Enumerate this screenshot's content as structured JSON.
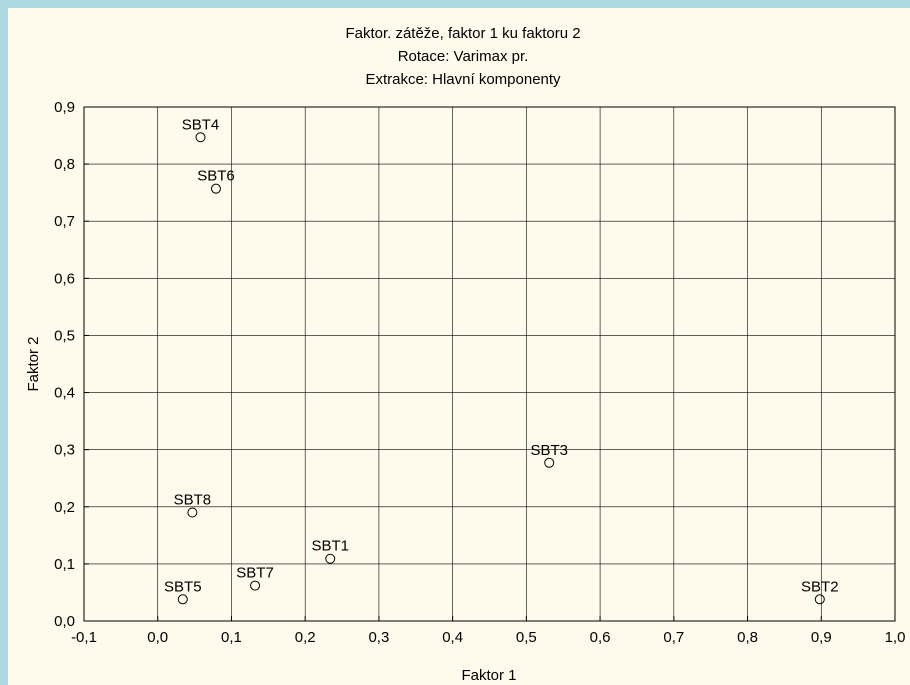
{
  "chart_data": {
    "type": "scatter",
    "title": [
      "Faktor. zátěže,  faktor 1 ku faktoru 2",
      "Rotace: Varimax pr.",
      "Extrakce: Hlavní komponenty"
    ],
    "xlabel": "Faktor 1",
    "ylabel": "Faktor 2",
    "xlim": [
      -0.1,
      1.0
    ],
    "ylim": [
      0.0,
      0.9
    ],
    "x_ticks": [
      "-0,1",
      "0,0",
      "0,1",
      "0,2",
      "0,3",
      "0,4",
      "0,5",
      "0,6",
      "0,7",
      "0,8",
      "0,9",
      "1,0"
    ],
    "y_ticks": [
      "0,0",
      "0,1",
      "0,2",
      "0,3",
      "0,4",
      "0,5",
      "0,6",
      "0,7",
      "0,8",
      "0,9"
    ],
    "grid": true,
    "points": [
      {
        "label": "SBT1",
        "x": 0.234,
        "y": 0.109
      },
      {
        "label": "SBT2",
        "x": 0.898,
        "y": 0.038
      },
      {
        "label": "SBT3",
        "x": 0.531,
        "y": 0.277
      },
      {
        "label": "SBT4",
        "x": 0.058,
        "y": 0.847
      },
      {
        "label": "SBT5",
        "x": 0.034,
        "y": 0.038
      },
      {
        "label": "SBT6",
        "x": 0.079,
        "y": 0.757
      },
      {
        "label": "SBT7",
        "x": 0.132,
        "y": 0.062
      },
      {
        "label": "SBT8",
        "x": 0.047,
        "y": 0.19
      }
    ]
  }
}
